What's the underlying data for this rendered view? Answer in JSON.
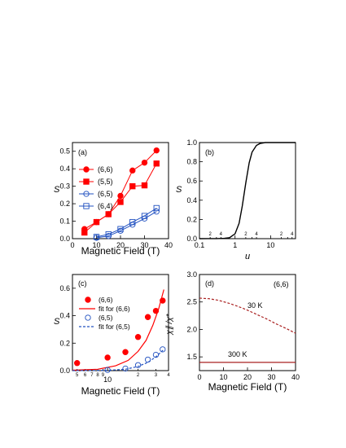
{
  "chart_data": [
    {
      "type": "line",
      "panel_label": "(a)",
      "xlabel": "Magnetic Field (T)",
      "ylabel": "S",
      "xlim": [
        0,
        40
      ],
      "ylim": [
        0,
        0.55
      ],
      "x_ticks": [
        "0",
        "10",
        "20",
        "30",
        "40"
      ],
      "y_ticks": [
        "0.0",
        "0.1",
        "0.2",
        "0.3",
        "0.4",
        "0.5"
      ],
      "legend_position": "left",
      "series": [
        {
          "name": "(6,6)",
          "color": "#ff0000",
          "marker": "filled-circle",
          "x": [
            5,
            10,
            15,
            20,
            25,
            30,
            35
          ],
          "y": [
            0.055,
            0.095,
            0.14,
            0.245,
            0.39,
            0.435,
            0.505
          ]
        },
        {
          "name": "(5,5)",
          "color": "#ff0000",
          "marker": "filled-square",
          "x": [
            5,
            10,
            15,
            20,
            25,
            30,
            35
          ],
          "y": [
            0.035,
            0.095,
            0.14,
            0.21,
            0.3,
            0.305,
            0.43
          ]
        },
        {
          "name": "(6,5)",
          "color": "#2050c0",
          "marker": "open-circle",
          "x": [
            10,
            15,
            20,
            25,
            30,
            35
          ],
          "y": [
            0.005,
            0.015,
            0.045,
            0.08,
            0.115,
            0.155
          ]
        },
        {
          "name": "(6,4)",
          "color": "#2050c0",
          "marker": "open-square",
          "x": [
            10,
            15,
            20,
            25,
            30,
            35
          ],
          "y": [
            0.01,
            0.025,
            0.055,
            0.095,
            0.13,
            0.175
          ]
        }
      ]
    },
    {
      "type": "line",
      "panel_label": "(b)",
      "xlabel": "u",
      "ylabel": "S",
      "xscale": "log",
      "xlim": [
        0.1,
        50
      ],
      "ylim": [
        0,
        1.0
      ],
      "x_ticks": [
        "0.1",
        "1",
        "10"
      ],
      "x_minor_labels": [
        "2",
        "4",
        "2",
        "4",
        "2",
        "4"
      ],
      "y_ticks": [
        "0.0",
        "0.2",
        "0.4",
        "0.6",
        "0.8",
        "1.0"
      ],
      "series": [
        {
          "x": [
            0.1,
            0.3,
            0.5,
            0.7,
            1.0,
            1.3,
            1.6,
            2.0,
            2.5,
            3.0,
            4.0,
            5.0,
            7.0,
            10,
            20,
            50
          ],
          "y": [
            0.0,
            0.001,
            0.003,
            0.01,
            0.05,
            0.16,
            0.34,
            0.58,
            0.79,
            0.9,
            0.97,
            0.99,
            1.0,
            1.0,
            1.0,
            1.0
          ]
        }
      ]
    },
    {
      "type": "line",
      "panel_label": "(c)",
      "xlabel": "Magnetic Field (T)",
      "ylabel": "S",
      "xscale": "log",
      "xlim": [
        4.5,
        40
      ],
      "ylim": [
        0,
        0.7
      ],
      "x_major_label": "10",
      "x_minor_labels": [
        "5",
        "6",
        "7",
        "8",
        "9",
        "2",
        "3",
        "4"
      ],
      "y_ticks": [
        "0.0",
        "0.2",
        "0.4",
        "0.6"
      ],
      "series": [
        {
          "name": "(6,6)",
          "color": "#ff0000",
          "marker": "filled-circle",
          "x": [
            5,
            10,
            15,
            20,
            25,
            30,
            35
          ],
          "y": [
            0.055,
            0.095,
            0.135,
            0.245,
            0.39,
            0.435,
            0.51
          ]
        },
        {
          "name": "fit for (6,6)",
          "color": "#ff0000",
          "style": "solid",
          "x": [
            4.5,
            8,
            12,
            16,
            20,
            24,
            28,
            32,
            36
          ],
          "y": [
            0.003,
            0.01,
            0.035,
            0.075,
            0.14,
            0.22,
            0.33,
            0.45,
            0.59
          ]
        },
        {
          "name": "(6,5)",
          "color": "#2050c0",
          "marker": "open-circle",
          "x": [
            10,
            15,
            20,
            25,
            30,
            35
          ],
          "y": [
            0.005,
            0.015,
            0.04,
            0.08,
            0.115,
            0.155
          ]
        },
        {
          "name": "fit for (6,5)",
          "color": "#2050c0",
          "style": "dashed",
          "x": [
            4.5,
            10,
            15,
            20,
            25,
            30,
            36
          ],
          "y": [
            0.0,
            0.002,
            0.01,
            0.03,
            0.06,
            0.1,
            0.155
          ]
        }
      ]
    },
    {
      "type": "line",
      "panel_label": "(d)",
      "annotation": "(6,6)",
      "xlabel": "Magnetic Field (T)",
      "ylabel": "χ∥ /χ*",
      "xlim": [
        0,
        40
      ],
      "ylim": [
        1.25,
        3.0
      ],
      "x_ticks": [
        "0",
        "10",
        "20",
        "30",
        "40"
      ],
      "y_ticks": [
        "1.5",
        "2.0",
        "2.5",
        "3.0"
      ],
      "series": [
        {
          "name": "30 K",
          "color": "#aa2020",
          "style": "dashed",
          "x": [
            0,
            4,
            8,
            12,
            16,
            20,
            24,
            28,
            32,
            36,
            40
          ],
          "y": [
            2.57,
            2.56,
            2.53,
            2.48,
            2.42,
            2.35,
            2.27,
            2.19,
            2.1,
            2.02,
            1.93
          ]
        },
        {
          "name": "300 K",
          "color": "#aa2020",
          "style": "solid",
          "x": [
            0,
            40
          ],
          "y": [
            1.4,
            1.4
          ]
        }
      ]
    }
  ]
}
